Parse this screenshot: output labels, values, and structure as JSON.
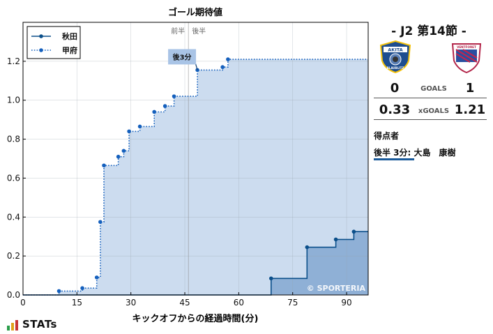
{
  "chart_data": {
    "type": "step-line",
    "title": "ゴール期待値",
    "xlabel": "キックオフからの経過時間(分)",
    "ylabel": "",
    "xlim": [
      0,
      96
    ],
    "ylim": [
      0,
      1.4
    ],
    "xticks": [
      0,
      15,
      30,
      45,
      60,
      75,
      90
    ],
    "yticks": [
      0.0,
      0.2,
      0.4,
      0.6,
      0.8,
      1.0,
      1.2
    ],
    "ytick_labels": [
      "0.0",
      "0.2",
      "0.4",
      "0.6",
      "0.8",
      "1.0",
      "1.2"
    ],
    "halftime_x": 46,
    "halftime_labels": [
      "前半",
      "後半"
    ],
    "watermark": "© SPORTERIA",
    "legend_position": "top-left",
    "series": [
      {
        "name": "秋田",
        "color": "#0b4f8a",
        "fill": "#8fb0d6",
        "line_style": "solid",
        "x": [
          69,
          79,
          87,
          92
        ],
        "y": [
          0.085,
          0.245,
          0.285,
          0.325
        ]
      },
      {
        "name": "甲府",
        "color": "#1560bd",
        "fill": "#ccdcef",
        "line_style": "dotted",
        "x": [
          10,
          16.5,
          20.5,
          21.5,
          22.5,
          26.5,
          28,
          29.5,
          32.5,
          36.5,
          39.5,
          42,
          48.5,
          55.5,
          57
        ],
        "y": [
          0.02,
          0.035,
          0.09,
          0.375,
          0.665,
          0.71,
          0.74,
          0.84,
          0.865,
          0.94,
          0.97,
          1.02,
          1.155,
          1.17,
          1.21
        ]
      }
    ],
    "goals": [
      {
        "team": "甲府",
        "label": "後3分",
        "x": 48.5,
        "y": 1.155
      }
    ]
  },
  "match": {
    "title": "-  J2 第14節  -",
    "home_score": "0",
    "away_score": "1",
    "goals_label": "GOALS",
    "home_xg": "0.33",
    "away_xg": "1.21",
    "xg_label": "xGOALS",
    "home_badge_text": "AKITA",
    "home_badge_sub": "BLAUBLITZ",
    "away_badge_text": "VENTFORET"
  },
  "scorers": {
    "title": "得点者",
    "items": [
      "後半   3分: 大島　康樹"
    ]
  },
  "brand": {
    "name": "STATs",
    "bar_colors": [
      "#2a9d4a",
      "#e0a21b",
      "#c83434"
    ]
  }
}
